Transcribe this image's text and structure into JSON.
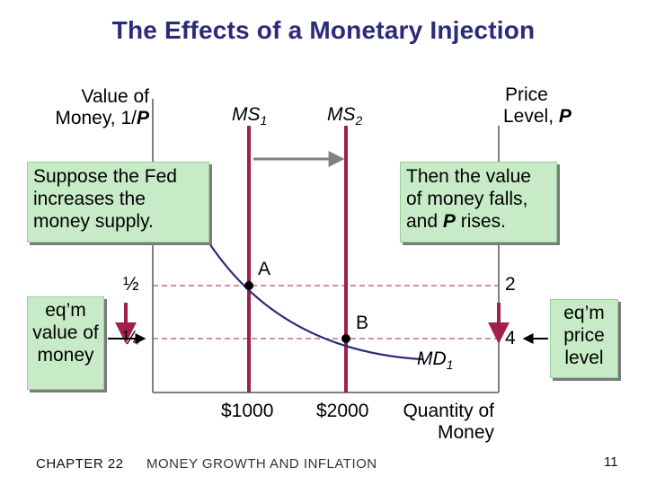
{
  "slide": {
    "title": "The Effects of a Monetary Injection",
    "footer_chapter": "CHAPTER 22",
    "footer_topic": "MONEY GROWTH AND INFLATION",
    "page_number": "11"
  },
  "axes": {
    "left_label_line1": "Value of",
    "left_label_line2": "Money, 1/",
    "left_label_var": "P",
    "right_label_line1": "Price",
    "right_label_line2": "Level, ",
    "right_label_var": "P",
    "x_label_line1": "Quantity of",
    "x_label_line2": "Money",
    "left_ticks": [
      "½",
      "¼"
    ],
    "right_ticks": [
      "2",
      "4"
    ],
    "x_ticks": [
      "$1000",
      "$2000"
    ]
  },
  "curves": {
    "ms1": "MS",
    "ms1_sub": "1",
    "ms2": "MS",
    "ms2_sub": "2",
    "md": "MD",
    "md_sub": "1"
  },
  "points": {
    "a": "A",
    "b": "B"
  },
  "callouts": {
    "left": "Suppose the Fed increases the money supply.",
    "right_part1": "Then the value of money falls, and ",
    "right_var": "P",
    "right_part2": " rises.",
    "eq_value": "eq’m value of money",
    "eq_price": "eq’m price level"
  },
  "colors": {
    "title": "#2b2b7a",
    "supply_line": "#a0204a",
    "callout_bg": "#c6ebc6",
    "dashed": "#c04060",
    "arrow": "#a0204a"
  }
}
